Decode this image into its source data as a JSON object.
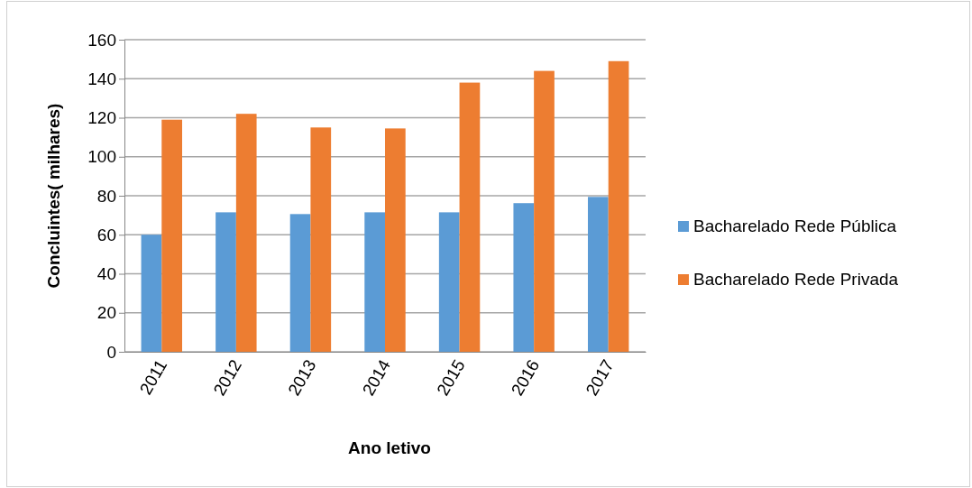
{
  "chart_data": {
    "type": "bar",
    "xlabel": "Ano letivo",
    "ylabel": "Concluintes( milhares)",
    "categories": [
      "2011",
      "2012",
      "2013",
      "2014",
      "2015",
      "2016",
      "2017"
    ],
    "series": [
      {
        "name": "Bacharelado Rede Pública",
        "color": "#5b9bd5",
        "values": [
          60,
          71.5,
          70.6,
          71.5,
          71.5,
          76.2,
          79.4
        ]
      },
      {
        "name": "Bacharelado Rede Privada",
        "color": "#ed7d31",
        "values": [
          119,
          122,
          115,
          114.5,
          138,
          144,
          149
        ]
      }
    ],
    "ylim": [
      0,
      160
    ],
    "yticks": [
      0,
      20,
      40,
      60,
      80,
      100,
      120,
      140,
      160
    ],
    "grid": "y",
    "legend": "right"
  }
}
